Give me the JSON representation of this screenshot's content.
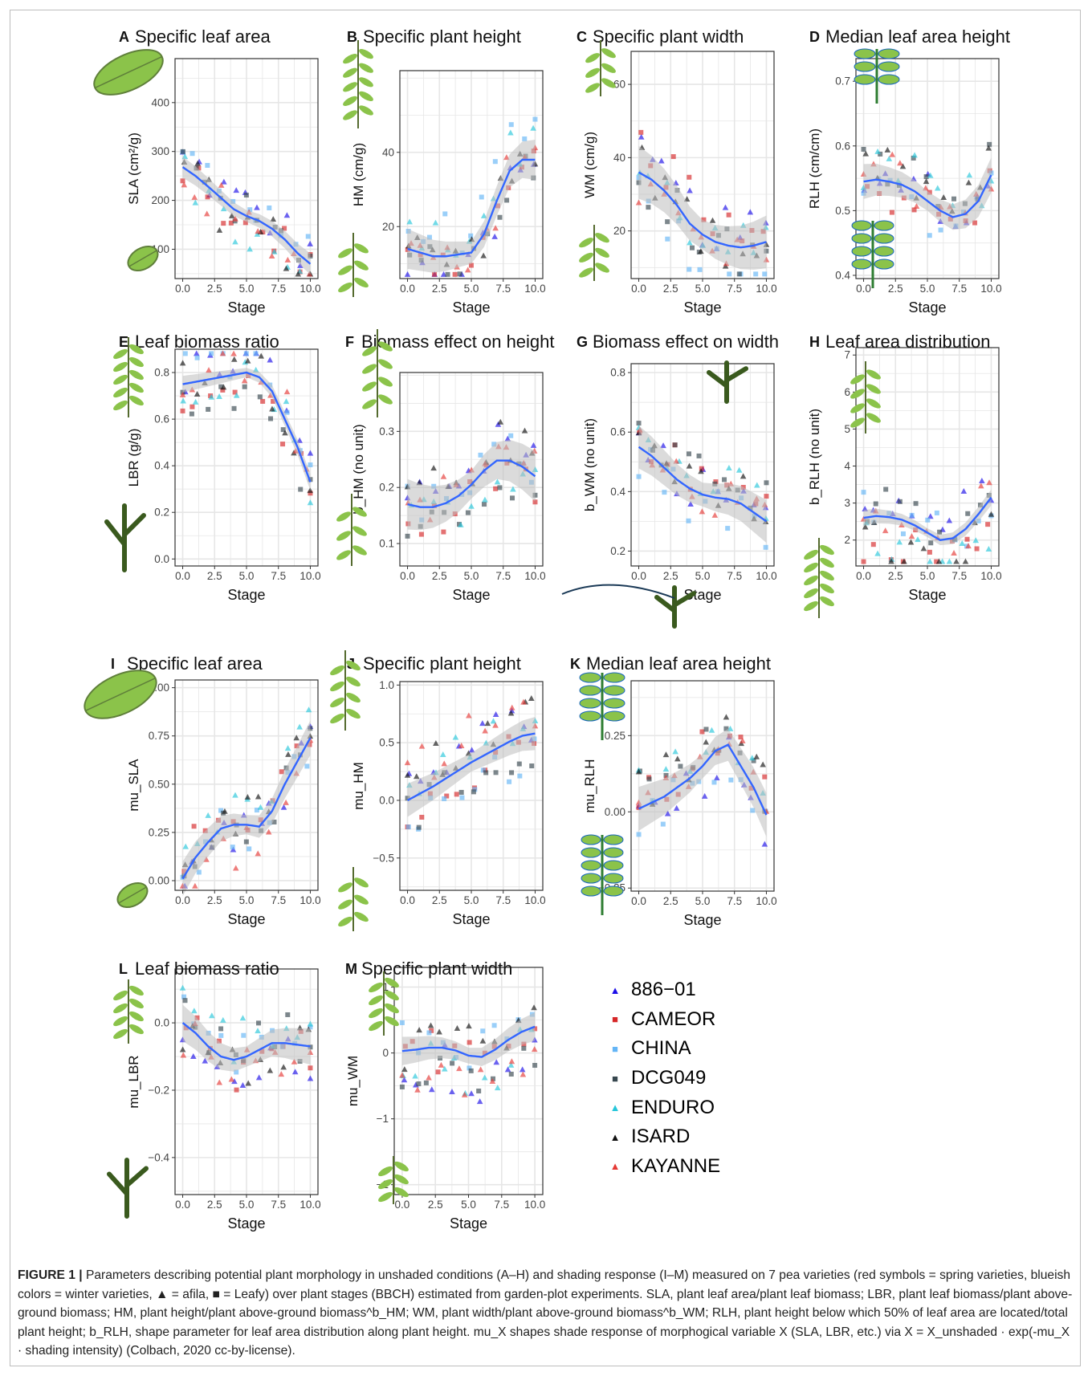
{
  "chart_data": [
    {
      "letter": "A",
      "title": "Specific leaf area",
      "type": "scatter",
      "xlabel": "Stage",
      "ylabel": "SLA (cm²/g)",
      "xlim": [
        -0.6,
        10.6
      ],
      "ylim": [
        40,
        490
      ],
      "xticks": [
        0,
        2.5,
        5,
        7.5,
        10
      ],
      "xtick_labels": [
        "0.0",
        "2.5",
        "5.0",
        "7.5",
        "10.0"
      ],
      "yticks": [
        100,
        200,
        300,
        400
      ],
      "ytick_labels": [
        "100",
        "200",
        "300",
        "400"
      ],
      "smooth": {
        "x": [
          0,
          1,
          2,
          3,
          4,
          5,
          6,
          7,
          8,
          9,
          10
        ],
        "y": [
          268,
          250,
          228,
          205,
          182,
          168,
          158,
          142,
          120,
          92,
          70
        ],
        "se": 12
      }
    },
    {
      "letter": "B",
      "title": "Specific plant height",
      "type": "scatter",
      "xlabel": "Stage",
      "ylabel": "HM (cm/g)",
      "xlim": [
        -0.6,
        10.6
      ],
      "ylim": [
        6,
        62
      ],
      "xticks": [
        0,
        2.5,
        5,
        7.5,
        10
      ],
      "xtick_labels": [
        "0.0",
        "2.5",
        "5.0",
        "7.5",
        "10.0"
      ],
      "yticks": [
        20,
        40
      ],
      "ytick_labels": [
        "20",
        "40"
      ],
      "smooth": {
        "x": [
          0,
          1,
          2,
          3,
          4,
          5,
          6,
          7,
          8,
          9,
          10
        ],
        "y": [
          14,
          13,
          12,
          12,
          12.5,
          13,
          18,
          27,
          35,
          38,
          38
        ],
        "se": 3
      }
    },
    {
      "letter": "C",
      "title": "Specific plant width",
      "type": "scatter",
      "xlabel": "Stage",
      "ylabel": "WM (cm/g)",
      "xlim": [
        -0.6,
        10.6
      ],
      "ylim": [
        7,
        69
      ],
      "xticks": [
        0,
        2.5,
        5,
        7.5,
        10
      ],
      "xtick_labels": [
        "0.0",
        "2.5",
        "5.0",
        "7.5",
        "10.0"
      ],
      "yticks": [
        20,
        40,
        60
      ],
      "ytick_labels": [
        "20",
        "40",
        "60"
      ],
      "smooth": {
        "x": [
          0,
          1,
          2,
          3,
          4,
          5,
          6,
          7,
          8,
          9,
          10
        ],
        "y": [
          36,
          34,
          31,
          27,
          22,
          19,
          17,
          16,
          15.5,
          16,
          17
        ],
        "se": 4
      }
    },
    {
      "letter": "D",
      "title": "Median leaf area height",
      "type": "scatter",
      "xlabel": "Stage",
      "ylabel": "RLH (cm/cm)",
      "xlim": [
        -0.6,
        10.6
      ],
      "ylim": [
        0.395,
        0.735
      ],
      "xticks": [
        0,
        2.5,
        5,
        7.5,
        10
      ],
      "xtick_labels": [
        "0.0",
        "2.5",
        "5.0",
        "7.5",
        "10.0"
      ],
      "yticks": [
        0.4,
        0.5,
        0.6,
        0.7
      ],
      "ytick_labels": [
        "0.4",
        "0.5",
        "0.6",
        "0.7"
      ],
      "smooth": {
        "x": [
          0,
          1,
          2,
          3,
          4,
          5,
          6,
          7,
          8,
          9,
          10
        ],
        "y": [
          0.545,
          0.548,
          0.545,
          0.54,
          0.53,
          0.515,
          0.5,
          0.49,
          0.495,
          0.515,
          0.555
        ],
        "se": 0.015
      }
    },
    {
      "letter": "E",
      "title": "Leaf biomass ratio",
      "type": "scatter",
      "xlabel": "Stage",
      "ylabel": "LBR (g/g)",
      "xlim": [
        -0.6,
        10.6
      ],
      "ylim": [
        -0.03,
        0.9
      ],
      "xticks": [
        0,
        2.5,
        5,
        7.5,
        10
      ],
      "xtick_labels": [
        "0.0",
        "2.5",
        "5.0",
        "7.5",
        "10.0"
      ],
      "yticks": [
        0,
        0.2,
        0.4,
        0.6,
        0.8
      ],
      "ytick_labels": [
        "0.0",
        "0.2",
        "0.4",
        "0.6",
        "0.8"
      ],
      "smooth": {
        "x": [
          0,
          1,
          2,
          3,
          4,
          5,
          6,
          7,
          8,
          9,
          10
        ],
        "y": [
          0.75,
          0.76,
          0.77,
          0.78,
          0.79,
          0.8,
          0.78,
          0.72,
          0.6,
          0.48,
          0.33
        ],
        "se": 0.02
      }
    },
    {
      "letter": "F",
      "title": "Biomass effect on height",
      "type": "scatter",
      "xlabel": "Stage",
      "ylabel": "b_HM (no unit)",
      "xlim": [
        -0.6,
        10.6
      ],
      "ylim": [
        0.06,
        0.405
      ],
      "xticks": [
        0,
        2.5,
        5,
        7.5,
        10
      ],
      "xtick_labels": [
        "0.0",
        "2.5",
        "5.0",
        "7.5",
        "10.0"
      ],
      "yticks": [
        0.1,
        0.2,
        0.3
      ],
      "ytick_labels": [
        "0.1",
        "0.2",
        "0.3"
      ],
      "smooth": {
        "x": [
          0,
          1,
          2,
          3,
          4,
          5,
          6,
          7,
          8,
          9,
          10
        ],
        "y": [
          0.17,
          0.165,
          0.165,
          0.172,
          0.185,
          0.205,
          0.23,
          0.248,
          0.248,
          0.237,
          0.22
        ],
        "se": 0.025
      }
    },
    {
      "letter": "G",
      "title": "Biomass effect on width",
      "type": "scatter",
      "xlabel": "Stage",
      "ylabel": "b_WM (no unit)",
      "xlim": [
        -0.6,
        10.6
      ],
      "ylim": [
        0.15,
        0.83
      ],
      "xticks": [
        0,
        2.5,
        5,
        7.5,
        10
      ],
      "xtick_labels": [
        "0.0",
        "2.5",
        "5.0",
        "7.5",
        "10.0"
      ],
      "yticks": [
        0.2,
        0.4,
        0.6,
        0.8
      ],
      "ytick_labels": [
        "0.2",
        "0.4",
        "0.6",
        "0.8"
      ],
      "smooth": {
        "x": [
          0,
          1,
          2,
          3,
          4,
          5,
          6,
          7,
          8,
          9,
          10
        ],
        "y": [
          0.55,
          0.52,
          0.48,
          0.44,
          0.41,
          0.39,
          0.38,
          0.375,
          0.36,
          0.33,
          0.3
        ],
        "se": 0.04
      }
    },
    {
      "letter": "H",
      "title": "Leaf area distribution",
      "type": "scatter",
      "xlabel": "Stage",
      "ylabel": "b_RLH (no unit)",
      "xlim": [
        -0.6,
        10.6
      ],
      "ylim": [
        1.3,
        7.2
      ],
      "xticks": [
        0,
        2.5,
        5,
        7.5,
        10
      ],
      "xtick_labels": [
        "0.0",
        "2.5",
        "5.0",
        "7.5",
        "10.0"
      ],
      "yticks": [
        2,
        3,
        4,
        5,
        6,
        7
      ],
      "ytick_labels": [
        "2",
        "3",
        "4",
        "5",
        "6",
        "7"
      ],
      "smooth": {
        "x": [
          0,
          1,
          2,
          3,
          4,
          5,
          6,
          7,
          8,
          9,
          10
        ],
        "y": [
          2.6,
          2.65,
          2.62,
          2.55,
          2.4,
          2.2,
          2.0,
          2.05,
          2.3,
          2.7,
          3.15
        ],
        "se": 0.12
      }
    },
    {
      "letter": "I",
      "title": "Specific leaf area",
      "type": "scatter",
      "xlabel": "Stage",
      "ylabel": "mu_SLA",
      "xlim": [
        -0.6,
        10.6
      ],
      "ylim": [
        -0.05,
        1.04
      ],
      "xticks": [
        0,
        2.5,
        5,
        7.5,
        10
      ],
      "xtick_labels": [
        "0.0",
        "2.5",
        "5.0",
        "7.5",
        "10.0"
      ],
      "yticks": [
        0,
        0.25,
        0.5,
        0.75,
        1.0
      ],
      "ytick_labels": [
        "0.00",
        "0.25",
        "0.50",
        "0.75",
        "1.00"
      ],
      "smooth": {
        "x": [
          0,
          1,
          2,
          3,
          4,
          5,
          6,
          7,
          8,
          9,
          10
        ],
        "y": [
          0.01,
          0.12,
          0.2,
          0.27,
          0.29,
          0.29,
          0.28,
          0.36,
          0.5,
          0.62,
          0.74
        ],
        "se": 0.05
      }
    },
    {
      "letter": "J",
      "title": "Specific plant height",
      "type": "scatter",
      "xlabel": "Stage",
      "ylabel": "mu_HM",
      "xlim": [
        -0.6,
        10.6
      ],
      "ylim": [
        -0.78,
        1.03
      ],
      "xticks": [
        0,
        2.5,
        5,
        7.5,
        10
      ],
      "xtick_labels": [
        "0.0",
        "2.5",
        "5.0",
        "7.5",
        "10.0"
      ],
      "yticks": [
        -0.5,
        0,
        0.5,
        1.0
      ],
      "ytick_labels": [
        "−0.5",
        "0.0",
        "0.5",
        "1.0"
      ],
      "smooth": {
        "x": [
          0,
          1,
          2,
          3,
          4,
          5,
          6,
          7,
          8,
          9,
          10
        ],
        "y": [
          0.0,
          0.06,
          0.12,
          0.19,
          0.26,
          0.33,
          0.39,
          0.45,
          0.51,
          0.56,
          0.58
        ],
        "se": 0.08
      }
    },
    {
      "letter": "K",
      "title": "Median leaf area height",
      "type": "scatter",
      "xlabel": "Stage",
      "ylabel": "mu_RLH",
      "xlim": [
        -0.6,
        10.6
      ],
      "ylim": [
        -0.26,
        0.43
      ],
      "xticks": [
        0,
        2.5,
        5,
        7.5,
        10
      ],
      "xtick_labels": [
        "0.0",
        "2.5",
        "5.0",
        "7.5",
        "10.0"
      ],
      "yticks": [
        -0.25,
        0,
        0.25
      ],
      "ytick_labels": [
        "−0.25",
        "0.00",
        "0.25"
      ],
      "smooth": {
        "x": [
          0,
          1,
          2,
          3,
          4,
          5,
          6,
          7,
          8,
          9,
          10
        ],
        "y": [
          0.01,
          0.03,
          0.05,
          0.08,
          0.11,
          0.15,
          0.2,
          0.22,
          0.15,
          0.08,
          -0.01
        ],
        "se": 0.04
      }
    },
    {
      "letter": "L",
      "title": "Leaf biomass ratio",
      "type": "scatter",
      "xlabel": "Stage",
      "ylabel": "mu_LBR",
      "xlim": [
        -0.6,
        10.6
      ],
      "ylim": [
        -0.51,
        0.16
      ],
      "xticks": [
        0,
        2.5,
        5,
        7.5,
        10
      ],
      "xtick_labels": [
        "0.0",
        "2.5",
        "5.0",
        "7.5",
        "10.0"
      ],
      "yticks": [
        -0.4,
        -0.2,
        0.0
      ],
      "ytick_labels": [
        "−0.4",
        "−0.2",
        "0.0"
      ],
      "smooth": {
        "x": [
          0,
          1,
          2,
          3,
          4,
          5,
          6,
          7,
          8,
          9,
          10
        ],
        "y": [
          0.0,
          -0.03,
          -0.07,
          -0.1,
          -0.11,
          -0.1,
          -0.08,
          -0.06,
          -0.06,
          -0.065,
          -0.07
        ],
        "se": 0.03
      }
    },
    {
      "letter": "M",
      "title": "Specific plant width",
      "type": "scatter",
      "xlabel": "Stage",
      "ylabel": "mu_WM",
      "xlim": [
        -0.6,
        10.6
      ],
      "ylim": [
        -2.15,
        1.3
      ],
      "xticks": [
        0,
        2.5,
        5,
        7.5,
        10
      ],
      "xtick_labels": [
        "0.0",
        "2.5",
        "5.0",
        "7.5",
        "10.0"
      ],
      "yticks": [
        -2,
        -1,
        0,
        1
      ],
      "ytick_labels": [
        "−2",
        "−1",
        "0",
        "1"
      ],
      "smooth": {
        "x": [
          0,
          1,
          2,
          3,
          4,
          5,
          6,
          7,
          8,
          9,
          10
        ],
        "y": [
          0.03,
          0.05,
          0.08,
          0.08,
          0.04,
          -0.04,
          -0.06,
          0.05,
          0.2,
          0.32,
          0.4
        ],
        "se": 0.12
      }
    }
  ],
  "legend": [
    {
      "name": "886−01",
      "shape": "triangle",
      "color": "#1c0ee8"
    },
    {
      "name": "CAMEOR",
      "shape": "square",
      "color": "#d62728"
    },
    {
      "name": "CHINA",
      "shape": "square",
      "color": "#64b5f6"
    },
    {
      "name": "DCG049",
      "shape": "square",
      "color": "#37474f"
    },
    {
      "name": "ENDURO",
      "shape": "triangle",
      "color": "#26c6da"
    },
    {
      "name": "ISARD",
      "shape": "triangle",
      "color": "#111111"
    },
    {
      "name": "KAYANNE",
      "shape": "triangle",
      "color": "#e53935"
    }
  ],
  "colors": {
    "smooth_line": "#3366ff",
    "ribbon": "#bdbdbd",
    "grid": "#e6e6e6",
    "panel_border": "#333333",
    "leaf": "#8bc34a",
    "stem": "#33691e"
  },
  "caption": {
    "label": "FIGURE 1 |",
    "text": "Parameters describing potential plant morphology in unshaded conditions (A–H) and shading response (I–M) measured on 7 pea varieties (red symbols = spring varieties, blueish colors = winter varieties, ▲ = afila, ■ = Leafy) over plant stages (BBCH) estimated from garden-plot experiments. SLA, plant leaf area/plant leaf biomass; LBR, plant leaf biomass/plant above-ground biomass; HM, plant height/plant above-ground biomass^b_HM; WM, plant width/plant above-ground biomass^b_WM; RLH, plant height below which 50% of leaf area are located/total plant height; b_RLH, shape parameter for leaf area distribution along plant height. mu_X shapes shade response of morphogical variable X (SLA, LBR, etc.) via X = X_unshaded · exp(-mu_X · shading intensity) (Colbach, 2020 cc-by-license)."
  }
}
